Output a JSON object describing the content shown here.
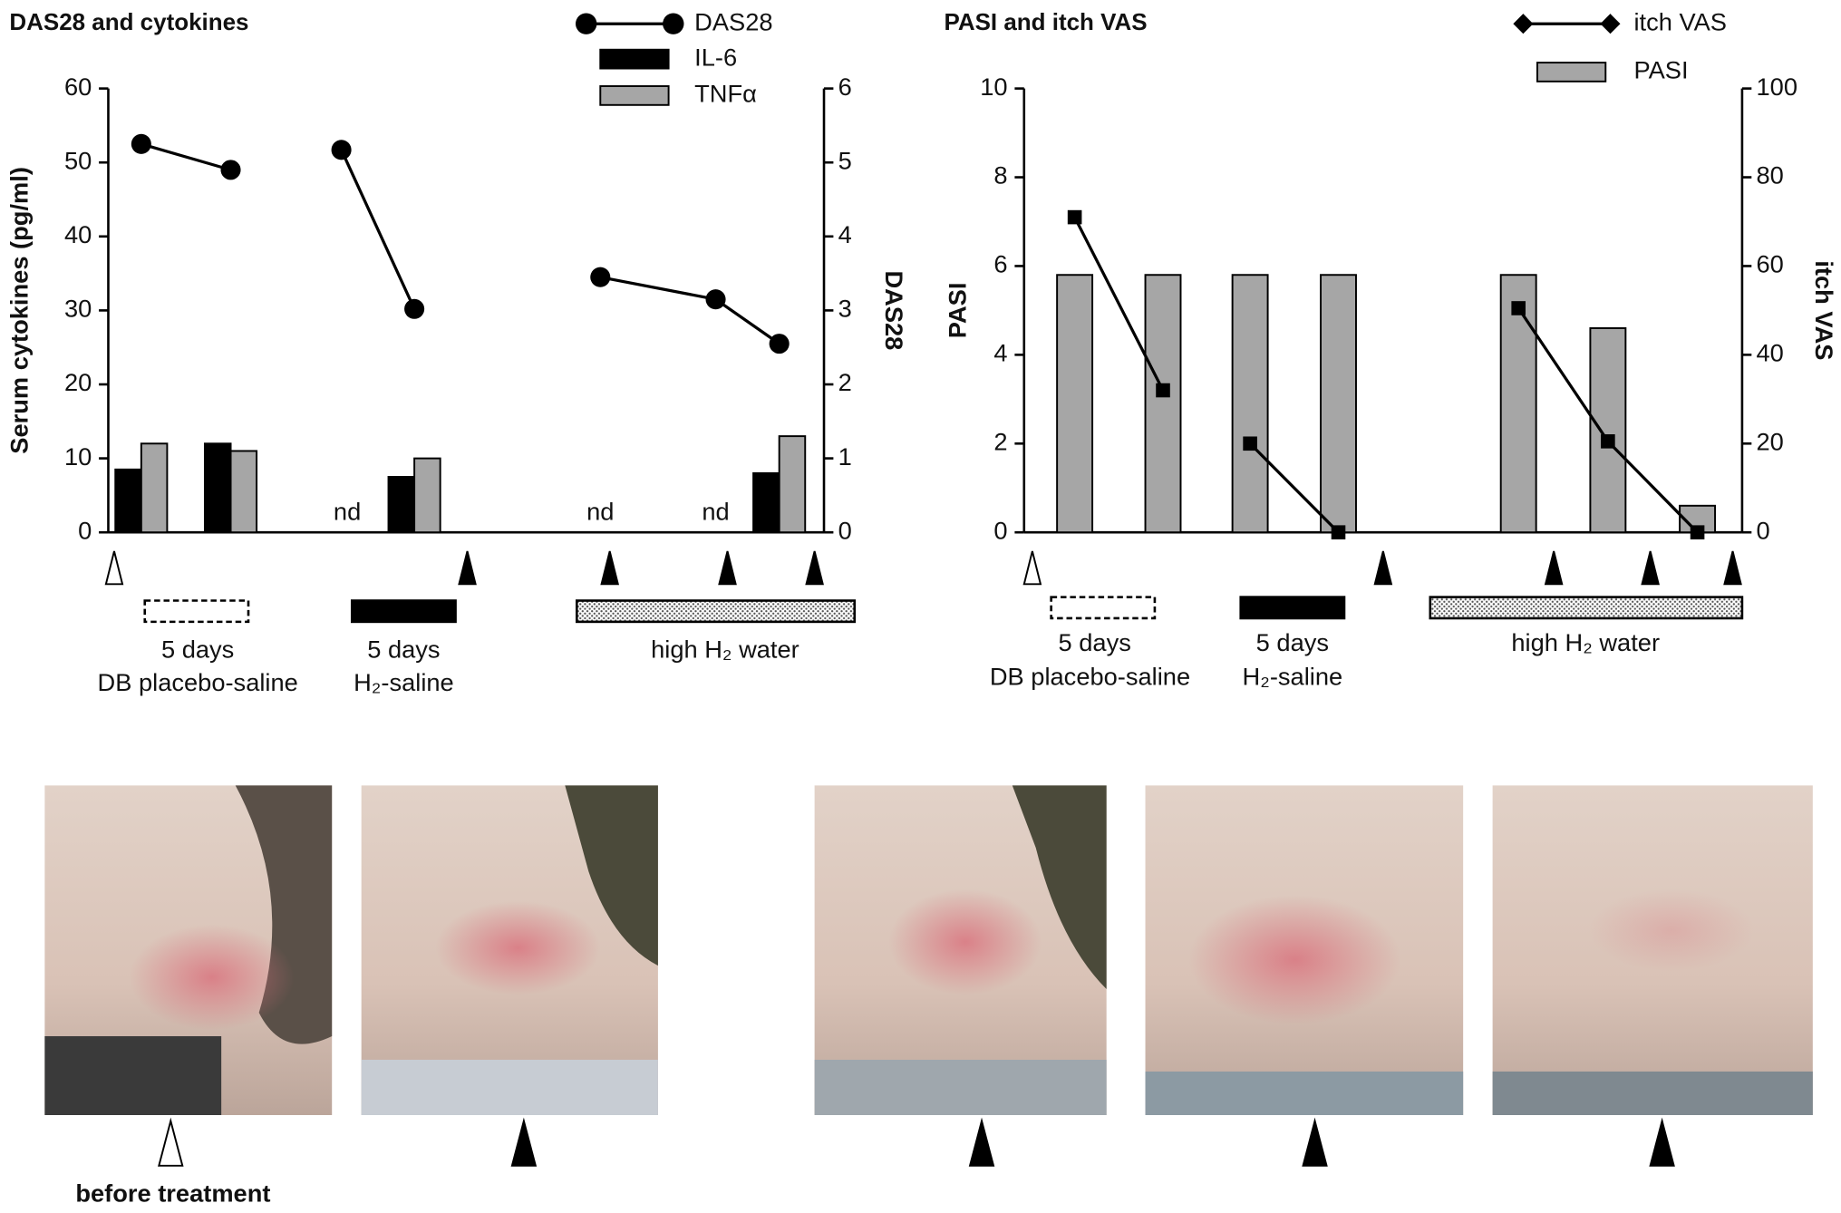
{
  "chart_data": [
    {
      "type": "combo",
      "title": "DAS28 and cytokines",
      "y_label": "Serum cytokines (pg/ml)",
      "y2_label": "DAS28",
      "categories": [
        null,
        null,
        null,
        null,
        null,
        null,
        null,
        null,
        null
      ],
      "series": [
        {
          "name": "DAS28",
          "type": "line",
          "axis": "y2",
          "marker": "circle",
          "color": "#000000",
          "values": [
            5.25,
            4.9,
            null,
            5.17,
            3.02,
            null,
            3.45,
            3.15,
            2.55
          ]
        },
        {
          "name": "IL-6",
          "type": "bar",
          "color": "#000000",
          "values": [
            8.5,
            12,
            null,
            null,
            7.5,
            null,
            null,
            null,
            8
          ]
        },
        {
          "name": "TNFα",
          "type": "bar",
          "color": "#a6a6a6",
          "values": [
            12,
            11,
            null,
            null,
            10,
            null,
            null,
            null,
            13
          ]
        }
      ],
      "annotations": [
        "nd",
        "nd",
        "nd"
      ],
      "ylim": [
        0,
        60
      ],
      "yticks": [
        0,
        10,
        20,
        30,
        40,
        50,
        60
      ],
      "y2lim": [
        0,
        6
      ],
      "y2ticks": [
        0,
        1,
        2,
        3,
        4,
        5,
        6
      ],
      "treatments": [
        {
          "duration": "5 days",
          "name": "DB placebo-saline"
        },
        {
          "duration": "5 days",
          "name": "H₂-saline"
        },
        {
          "name": "high H₂ water"
        }
      ]
    },
    {
      "type": "combo",
      "title": "PASI and itch VAS",
      "y_label": "PASI",
      "y2_label": "itch VAS",
      "categories": [
        null,
        null,
        null,
        null,
        null,
        null,
        null,
        null,
        null
      ],
      "series": [
        {
          "name": "itch VAS",
          "type": "line",
          "axis": "y2",
          "marker": "square",
          "color": "#000000",
          "values": [
            71,
            32,
            null,
            20,
            0,
            null,
            50.5,
            20.5,
            0
          ]
        },
        {
          "name": "PASI",
          "type": "bar",
          "color": "#a6a6a6",
          "values": [
            5.8,
            5.8,
            null,
            5.8,
            5.8,
            null,
            5.8,
            4.6,
            0.6
          ]
        }
      ],
      "ylim": [
        0,
        10
      ],
      "yticks": [
        0,
        2,
        4,
        6,
        8,
        10
      ],
      "y2lim": [
        0,
        100
      ],
      "y2ticks": [
        0,
        20,
        40,
        60,
        80,
        100
      ],
      "treatments": [
        {
          "duration": "5 days",
          "name": "DB placebo-saline"
        },
        {
          "duration": "5 days",
          "name": "H₂-saline"
        },
        {
          "name": "high H₂ water"
        }
      ]
    }
  ],
  "photo_caption": "before treatment"
}
